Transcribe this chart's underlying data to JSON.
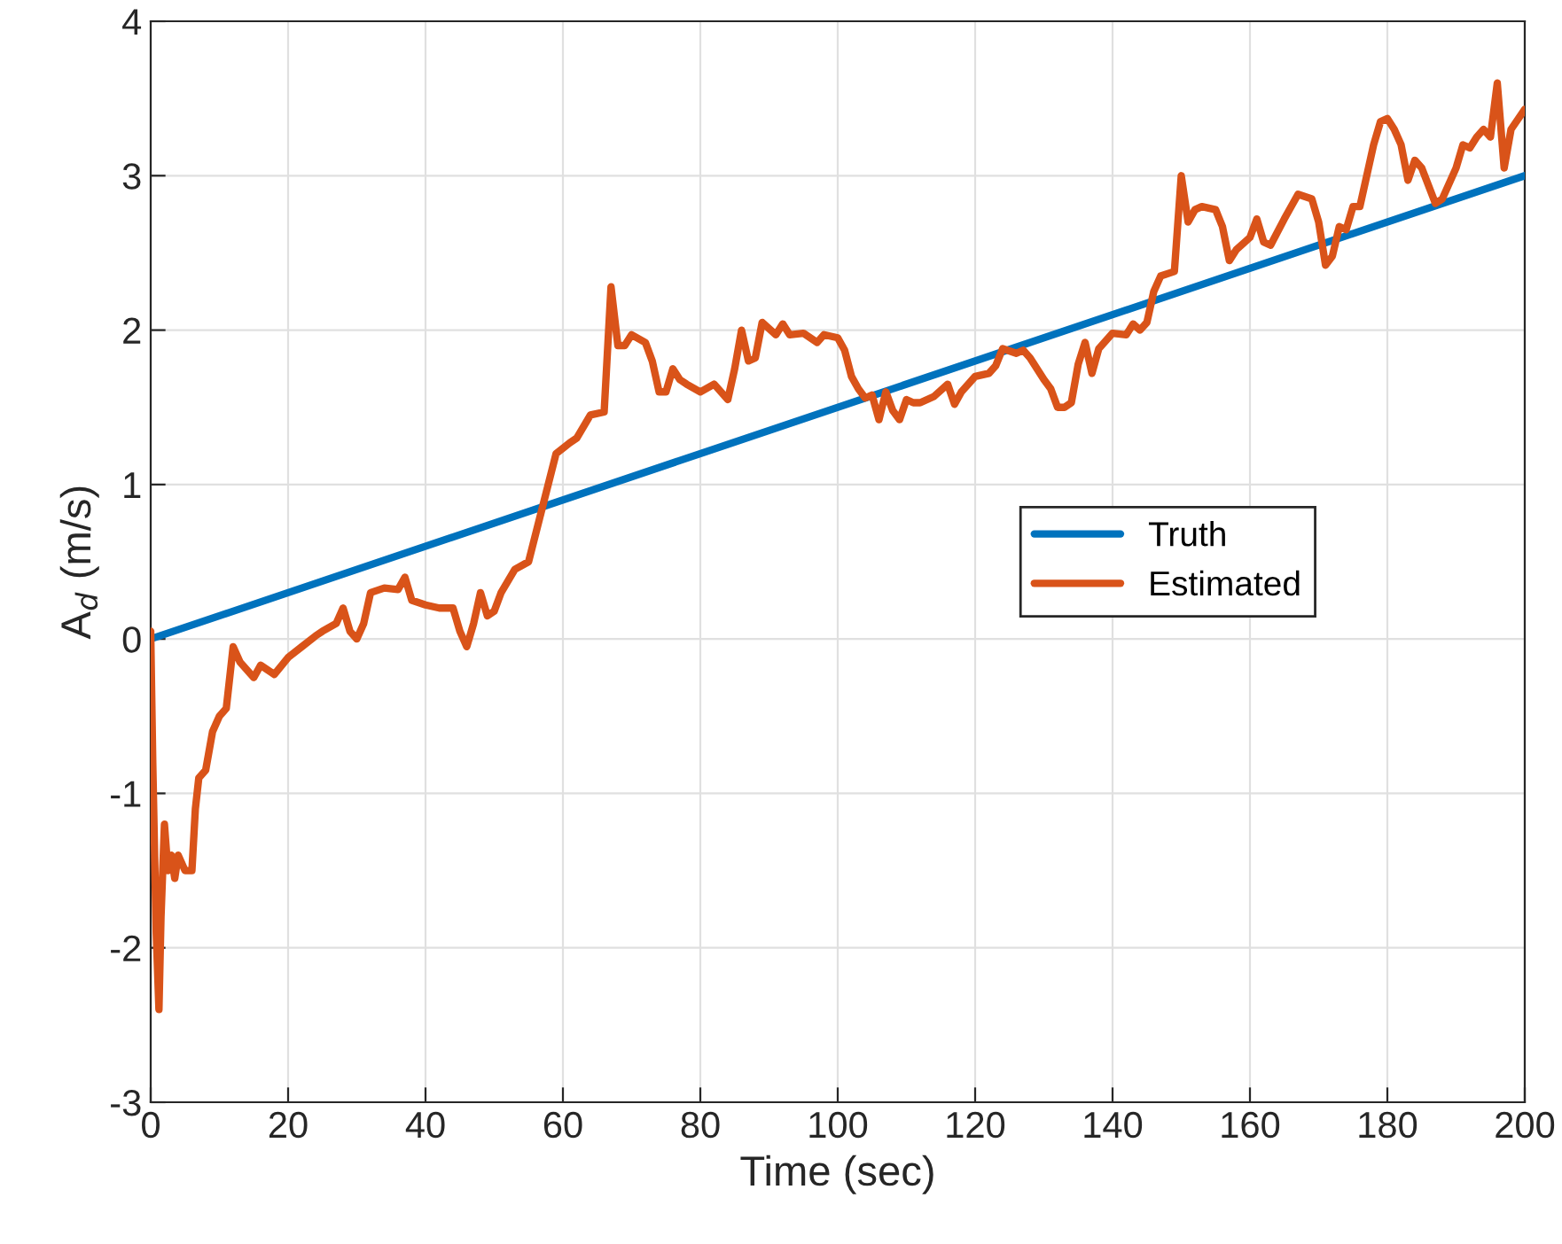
{
  "chart_data": {
    "type": "line",
    "xlabel": "Time (sec)",
    "ylabel": "A$_{d}$ (m/s)",
    "xlim": [
      0,
      200
    ],
    "ylim": [
      -3,
      4
    ],
    "xticks": [
      0,
      20,
      40,
      60,
      80,
      100,
      120,
      140,
      160,
      180,
      200
    ],
    "yticks": [
      -3,
      -2,
      -1,
      0,
      1,
      2,
      3,
      4
    ],
    "grid": true,
    "legend": "center right",
    "series": [
      {
        "name": "Truth",
        "color": "#0072bd",
        "x": [
          0,
          200
        ],
        "values": [
          0,
          3
        ]
      },
      {
        "name": "Estimated",
        "color": "#d95319",
        "x": [
          0,
          0.3,
          0.8,
          1.2,
          1.5,
          2,
          2.5,
          3,
          3.5,
          4,
          5,
          6,
          6.5,
          7,
          8,
          9,
          10,
          11,
          12,
          13,
          14,
          15,
          16,
          17,
          18,
          20,
          22,
          24,
          25,
          27,
          28,
          29,
          30,
          31,
          32,
          34,
          36,
          37,
          38,
          40,
          42,
          44,
          45,
          46,
          47,
          48,
          49,
          50,
          51,
          53,
          55,
          57,
          59,
          61,
          62,
          64,
          66,
          67,
          68,
          69,
          70,
          72,
          73,
          74,
          75,
          76,
          77,
          78,
          80,
          82,
          84,
          85,
          86,
          87,
          88,
          89,
          91,
          92,
          93,
          95,
          97,
          98,
          100,
          101,
          102,
          103,
          104,
          105,
          106,
          107,
          108,
          109,
          110,
          111,
          112,
          114,
          116,
          117,
          118,
          120,
          122,
          123,
          124,
          126,
          127,
          128,
          130,
          131,
          132,
          133,
          134,
          135,
          136,
          137,
          138,
          140,
          142,
          143,
          144,
          145,
          146,
          147,
          149,
          150,
          151,
          152,
          153,
          155,
          156,
          157,
          158,
          160,
          161,
          162,
          163,
          165,
          167,
          169,
          170,
          171,
          172,
          173,
          174,
          175,
          176,
          178,
          179,
          180,
          181,
          182,
          183,
          184,
          185,
          187,
          188,
          190,
          191,
          192,
          193,
          194,
          195,
          196,
          197,
          198,
          200
        ],
        "values": [
          0.05,
          -0.8,
          -1.9,
          -2.4,
          -1.8,
          -1.2,
          -1.5,
          -1.4,
          -1.55,
          -1.4,
          -1.5,
          -1.5,
          -1.1,
          -0.9,
          -0.85,
          -0.6,
          -0.5,
          -0.45,
          -0.05,
          -0.15,
          -0.2,
          -0.25,
          -0.17,
          -0.2,
          -0.23,
          -0.12,
          -0.05,
          0.02,
          0.05,
          0.1,
          0.2,
          0.05,
          0.0,
          0.1,
          0.3,
          0.33,
          0.32,
          0.4,
          0.25,
          0.22,
          0.2,
          0.2,
          0.05,
          -0.05,
          0.1,
          0.3,
          0.15,
          0.18,
          0.3,
          0.45,
          0.5,
          0.85,
          1.2,
          1.27,
          1.3,
          1.45,
          1.47,
          2.28,
          1.9,
          1.9,
          1.97,
          1.92,
          1.8,
          1.6,
          1.6,
          1.75,
          1.68,
          1.65,
          1.6,
          1.65,
          1.55,
          1.75,
          2.0,
          1.8,
          1.82,
          2.05,
          1.97,
          2.04,
          1.97,
          1.98,
          1.92,
          1.97,
          1.95,
          1.87,
          1.7,
          1.62,
          1.56,
          1.58,
          1.42,
          1.6,
          1.48,
          1.42,
          1.55,
          1.53,
          1.53,
          1.57,
          1.65,
          1.52,
          1.6,
          1.7,
          1.72,
          1.77,
          1.88,
          1.85,
          1.87,
          1.82,
          1.68,
          1.62,
          1.5,
          1.5,
          1.53,
          1.78,
          1.92,
          1.72,
          1.88,
          1.98,
          1.97,
          2.04,
          2.0,
          2.05,
          2.25,
          2.35,
          2.38,
          3.0,
          2.7,
          2.78,
          2.8,
          2.78,
          2.67,
          2.45,
          2.52,
          2.6,
          2.72,
          2.57,
          2.55,
          2.72,
          2.88,
          2.85,
          2.7,
          2.42,
          2.48,
          2.67,
          2.65,
          2.8,
          2.8,
          3.2,
          3.35,
          3.37,
          3.3,
          3.2,
          2.97,
          3.1,
          3.05,
          2.82,
          2.85,
          3.05,
          3.2,
          3.18,
          3.25,
          3.3,
          3.25,
          3.6,
          3.05,
          3.3,
          3.43
        ]
      }
    ]
  }
}
